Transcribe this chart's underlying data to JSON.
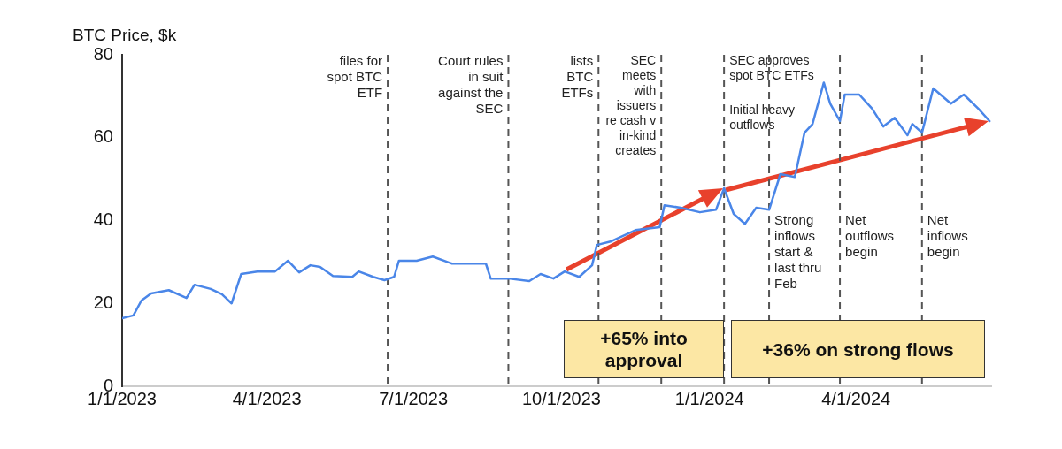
{
  "chart_data": {
    "type": "line",
    "ylabel": "BTC Price, $k",
    "marker": "none",
    "legend": false,
    "xlim": [
      "2023-01-01",
      "2024-06-24"
    ],
    "xticks": [
      {
        "value": "2023-01-01",
        "label": "1/1/2023"
      },
      {
        "value": "2023-04-01",
        "label": "4/1/2023"
      },
      {
        "value": "2023-07-01",
        "label": "7/1/2023"
      },
      {
        "value": "2023-10-01",
        "label": "10/1/2023"
      },
      {
        "value": "2024-01-01",
        "label": "1/1/2024"
      },
      {
        "value": "2024-04-01",
        "label": "4/1/2024"
      }
    ],
    "ylim": [
      0,
      80
    ],
    "yticks": [
      0,
      20,
      40,
      60,
      80
    ],
    "series": [
      {
        "color": "#4a86e8",
        "x": [
          "2023-01-01",
          "2023-01-08",
          "2023-01-13",
          "2023-01-19",
          "2023-01-30",
          "2023-02-10",
          "2023-02-15",
          "2023-02-25",
          "2023-03-04",
          "2023-03-10",
          "2023-03-16",
          "2023-03-26",
          "2023-04-06",
          "2023-04-14",
          "2023-04-21",
          "2023-04-28",
          "2023-05-04",
          "2023-05-12",
          "2023-05-24",
          "2023-05-28",
          "2023-06-06",
          "2023-06-13",
          "2023-06-19",
          "2023-06-22",
          "2023-07-03",
          "2023-07-13",
          "2023-07-25",
          "2023-08-15",
          "2023-08-18",
          "2023-08-29",
          "2023-09-11",
          "2023-09-18",
          "2023-09-26",
          "2023-10-03",
          "2023-10-12",
          "2023-10-20",
          "2023-10-23",
          "2023-11-01",
          "2023-11-16",
          "2023-12-01",
          "2023-12-04",
          "2023-12-14",
          "2023-12-26",
          "2024-01-05",
          "2024-01-10",
          "2024-01-16",
          "2024-01-23",
          "2024-01-30",
          "2024-02-07",
          "2024-02-14",
          "2024-02-23",
          "2024-02-29",
          "2024-03-05",
          "2024-03-12",
          "2024-03-16",
          "2024-03-22",
          "2024-03-25",
          "2024-04-03",
          "2024-04-11",
          "2024-04-18",
          "2024-04-25",
          "2024-05-03",
          "2024-05-06",
          "2024-05-12",
          "2024-05-19",
          "2024-05-30",
          "2024-06-07",
          "2024-06-16",
          "2024-06-23"
        ],
        "values": [
          16.4,
          17.1,
          20.7,
          22.4,
          23.2,
          21.3,
          24.5,
          23.5,
          22.2,
          20.0,
          27.1,
          27.7,
          27.7,
          30.3,
          27.5,
          29.2,
          28.8,
          26.6,
          26.4,
          27.7,
          26.4,
          25.6,
          26.4,
          30.3,
          30.3,
          31.3,
          29.6,
          29.6,
          26.0,
          26.0,
          25.4,
          27.1,
          26.0,
          27.7,
          26.4,
          29.2,
          34.1,
          35.0,
          37.7,
          38.4,
          43.7,
          43.1,
          42.0,
          42.6,
          47.8,
          41.6,
          39.2,
          43.1,
          42.6,
          51.2,
          50.5,
          61.2,
          63.3,
          73.3,
          68.2,
          64.0,
          70.4,
          70.4,
          67.0,
          62.7,
          64.8,
          60.6,
          63.3,
          61.2,
          71.9,
          68.2,
          70.4,
          67.0,
          64.0
        ]
      }
    ],
    "ref_lines": [
      {
        "axis": "x",
        "value": "2023-06-15",
        "label": "files for spot BTC ETF",
        "color": "#555555",
        "line_style": "dashed"
      },
      {
        "axis": "x",
        "value": "2023-08-29",
        "label": "Court rules in suit against the SEC",
        "color": "#555555",
        "line_style": "dashed"
      },
      {
        "axis": "x",
        "value": "2023-10-24",
        "label": "lists BTC ETFs",
        "color": "#555555",
        "line_style": "dashed"
      },
      {
        "axis": "x",
        "value": "2023-12-02",
        "label": "SEC meets with issuers re cash v in-kind creates",
        "color": "#555555",
        "line_style": "dashed"
      },
      {
        "axis": "x",
        "value": "2024-01-10",
        "label": "SEC approves spot BTC ETFs",
        "color": "#555555",
        "line_style": "dashed"
      },
      {
        "axis": "x",
        "value": "2024-02-07",
        "label": "Strong inflows start & last thru Feb",
        "color": "#555555",
        "line_style": "dashed"
      },
      {
        "axis": "x",
        "value": "2024-03-22",
        "label": "Net outflows begin",
        "color": "#555555",
        "line_style": "dashed"
      },
      {
        "axis": "x",
        "value": "2024-05-12",
        "label": "Net inflows begin",
        "color": "#555555",
        "line_style": "dashed"
      }
    ],
    "annotations": [
      "+65% into approval",
      "+36% on strong flows",
      {
        "text": "Initial heavy outflows",
        "x": "2024-01-10",
        "y": 68
      }
    ]
  }
}
